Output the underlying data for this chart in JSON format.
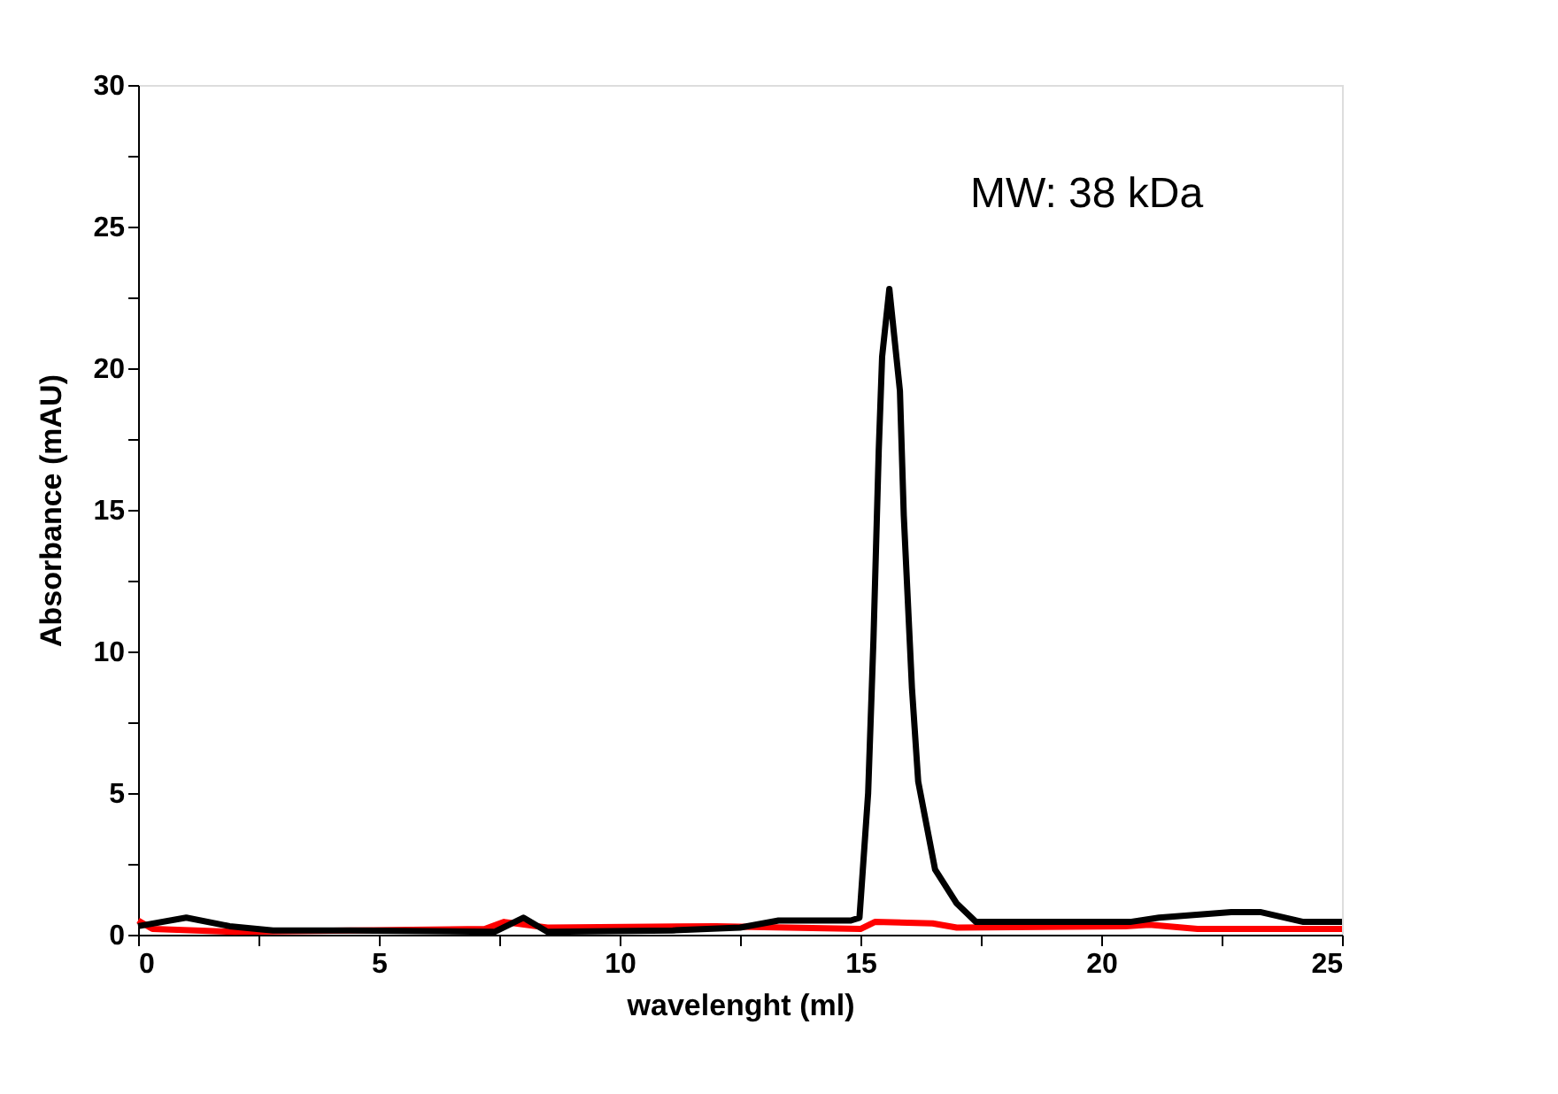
{
  "chart_data": {
    "type": "line",
    "xlabel": "wavelenght (ml)",
    "ylabel": "Absorbance (mAU)",
    "annotations": [
      "MW: 38 kDa"
    ],
    "xlim": [
      0,
      25
    ],
    "ylim": [
      0,
      30
    ],
    "xticks": [
      0,
      {
        "value": 2.5,
        "label": null
      },
      5,
      {
        "value": 7.5,
        "label": null
      },
      10,
      {
        "value": 12.5,
        "label": null
      },
      15,
      {
        "value": 17.5,
        "label": null
      },
      20,
      {
        "value": 22.5,
        "label": null
      },
      25
    ],
    "yticks": [
      0,
      {
        "value": 2.5,
        "label": null
      },
      5,
      {
        "value": 7.5,
        "label": null
      },
      10,
      {
        "value": 12.5,
        "label": null
      },
      15,
      {
        "value": 17.5,
        "label": null
      },
      20,
      {
        "value": 22.5,
        "label": null
      },
      25,
      {
        "value": 27.5,
        "label": null
      },
      30
    ],
    "grid": false,
    "legend": false,
    "line_style": "solid",
    "marker": "none",
    "series": [
      {
        "color": "#ff0000",
        "x": [
          0,
          0.3,
          2,
          7.2,
          7.6,
          8.5,
          12,
          15,
          15.3,
          16.5,
          17,
          20.5,
          21,
          22,
          25
        ],
        "values": [
          0.5,
          0.2,
          0.1,
          0.2,
          0.45,
          0.25,
          0.3,
          0.2,
          0.45,
          0.4,
          0.25,
          0.3,
          0.35,
          0.2,
          0.2
        ]
      },
      {
        "color": "#000000",
        "x": [
          0,
          1.0,
          1.9,
          2.8,
          4.4,
          7.4,
          8.0,
          8.5,
          11.1,
          12.5,
          13.3,
          14.8,
          14.98,
          15.16,
          15.27,
          15.38,
          15.45,
          15.6,
          15.82,
          15.9,
          16.07,
          16.2,
          16.55,
          17.0,
          17.4,
          20.6,
          21.2,
          22.7,
          23.3,
          24.2,
          25
        ],
        "values": [
          0.3,
          0.6,
          0.3,
          0.15,
          0.15,
          0.1,
          0.6,
          0.1,
          0.15,
          0.25,
          0.5,
          0.5,
          0.6,
          5,
          10.4,
          17.1,
          20.4,
          22.8,
          19.2,
          14.8,
          8.7,
          5.4,
          2.3,
          1.1,
          0.45,
          0.45,
          0.6,
          0.8,
          0.8,
          0.45,
          0.45
        ]
      }
    ]
  }
}
